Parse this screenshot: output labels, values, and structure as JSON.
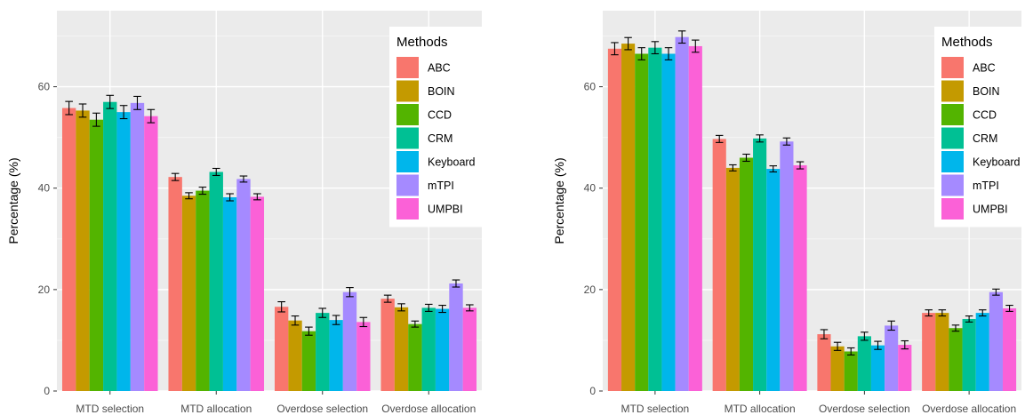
{
  "chart_data": [
    {
      "type": "bar",
      "ylabel": "Percentage (%)",
      "xlabel": "",
      "ylim": [
        0,
        75
      ],
      "yticks": [
        0,
        20,
        40,
        60
      ],
      "grid": true,
      "legend_position": "top-right",
      "legend_title": "Methods",
      "categories": [
        "MTD selection",
        "MTD allocation",
        "Overdose selection",
        "Overdose allocation"
      ],
      "series": [
        {
          "name": "ABC",
          "color": "#F8766D",
          "values": [
            55.8,
            42.2,
            16.6,
            18.2
          ],
          "errors": [
            1.3,
            0.7,
            1.0,
            0.7
          ]
        },
        {
          "name": "BOIN",
          "color": "#C49A00",
          "values": [
            55.3,
            38.5,
            13.9,
            16.5
          ],
          "errors": [
            1.3,
            0.6,
            0.9,
            0.7
          ]
        },
        {
          "name": "CCD",
          "color": "#53B400",
          "values": [
            53.5,
            39.5,
            11.8,
            13.2
          ],
          "errors": [
            1.3,
            0.7,
            0.8,
            0.6
          ]
        },
        {
          "name": "CRM",
          "color": "#00C094",
          "values": [
            57.0,
            43.2,
            15.4,
            16.4
          ],
          "errors": [
            1.3,
            0.7,
            0.9,
            0.7
          ]
        },
        {
          "name": "Keyboard",
          "color": "#00B6EB",
          "values": [
            55.0,
            38.2,
            14.0,
            16.2
          ],
          "errors": [
            1.3,
            0.7,
            0.9,
            0.7
          ]
        },
        {
          "name": "mTPI",
          "color": "#A58AFF",
          "values": [
            56.8,
            41.8,
            19.5,
            21.2
          ],
          "errors": [
            1.3,
            0.6,
            0.9,
            0.7
          ]
        },
        {
          "name": "UMPBI",
          "color": "#FB61D7",
          "values": [
            54.2,
            38.3,
            13.6,
            16.4
          ],
          "errors": [
            1.3,
            0.6,
            0.9,
            0.6
          ]
        }
      ]
    },
    {
      "type": "bar",
      "ylabel": "Percentage (%)",
      "xlabel": "",
      "ylim": [
        0,
        75
      ],
      "yticks": [
        0,
        20,
        40,
        60
      ],
      "grid": true,
      "legend_position": "top-right",
      "legend_title": "Methods",
      "categories": [
        "MTD selection",
        "MTD allocation",
        "Overdose selection",
        "Overdose allocation"
      ],
      "series": [
        {
          "name": "ABC",
          "color": "#F8766D",
          "values": [
            67.5,
            49.7,
            11.2,
            15.4
          ],
          "errors": [
            1.2,
            0.7,
            0.9,
            0.6
          ]
        },
        {
          "name": "BOIN",
          "color": "#C49A00",
          "values": [
            68.5,
            44.0,
            8.8,
            15.4
          ],
          "errors": [
            1.2,
            0.6,
            0.8,
            0.6
          ]
        },
        {
          "name": "CCD",
          "color": "#53B400",
          "values": [
            66.5,
            46.0,
            7.8,
            12.4
          ],
          "errors": [
            1.2,
            0.7,
            0.7,
            0.6
          ]
        },
        {
          "name": "CRM",
          "color": "#00C094",
          "values": [
            67.7,
            49.8,
            10.8,
            14.2
          ],
          "errors": [
            1.2,
            0.7,
            0.8,
            0.6
          ]
        },
        {
          "name": "Keyboard",
          "color": "#00B6EB",
          "values": [
            66.5,
            43.8,
            9.0,
            15.4
          ],
          "errors": [
            1.2,
            0.6,
            0.8,
            0.6
          ]
        },
        {
          "name": "mTPI",
          "color": "#A58AFF",
          "values": [
            69.8,
            49.2,
            12.9,
            19.5
          ],
          "errors": [
            1.2,
            0.7,
            0.9,
            0.6
          ]
        },
        {
          "name": "UMPBI",
          "color": "#FB61D7",
          "values": [
            68.0,
            44.5,
            9.1,
            16.3
          ],
          "errors": [
            1.2,
            0.7,
            0.8,
            0.6
          ]
        }
      ]
    }
  ]
}
